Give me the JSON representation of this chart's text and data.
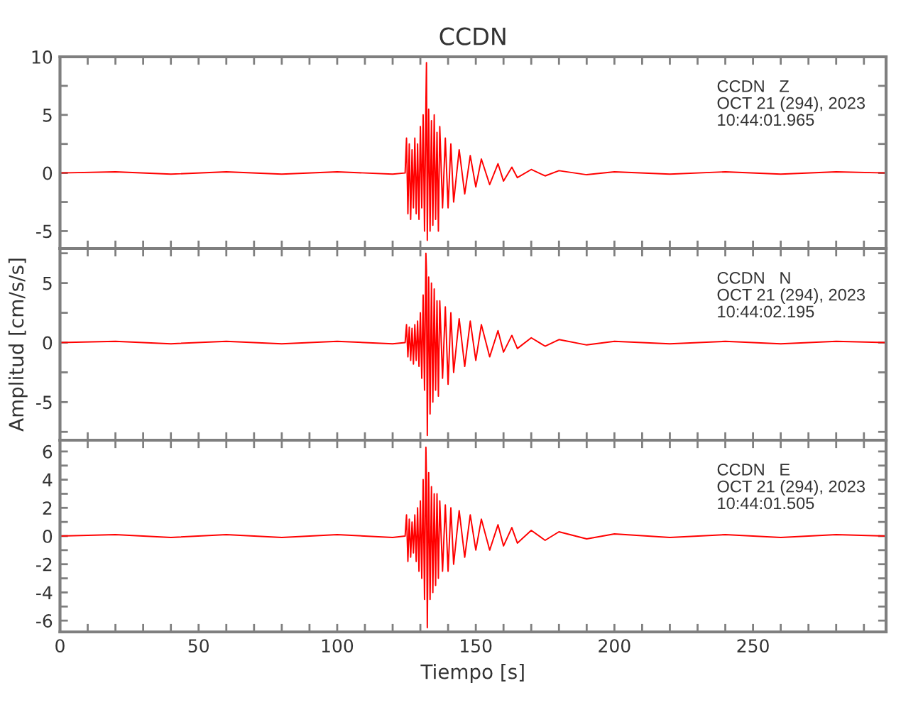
{
  "chart_data": [
    {
      "type": "line",
      "title": "CCDN",
      "annotations": [
        "CCDN   Z\nOCT 21 (294), 2023\n10:44:01.965"
      ],
      "tick_labels": "y",
      "grid": false,
      "line_style": "solid",
      "x": [
        0,
        20,
        40,
        60,
        80,
        100,
        120,
        124.5,
        125,
        125.5,
        126,
        126.5,
        127,
        127.5,
        128,
        128.5,
        129,
        129.5,
        130,
        130.5,
        131,
        131.5,
        132,
        132.2,
        132.5,
        133,
        133.5,
        134,
        134.5,
        135,
        135.5,
        136,
        136.5,
        137,
        138,
        139,
        140,
        141,
        142,
        144,
        146,
        148,
        150,
        152,
        155,
        158,
        160,
        163,
        165,
        170,
        175,
        180,
        190,
        200,
        220,
        240,
        260,
        280,
        298
      ],
      "series": [
        {
          "color": "#ff0000",
          "values": [
            0,
            0.1,
            -0.1,
            0.1,
            -0.1,
            0.1,
            -0.1,
            0,
            3,
            -3.5,
            2.5,
            -4,
            2,
            -3,
            3,
            -3.5,
            2.5,
            -4,
            4,
            -3,
            5,
            -5,
            6,
            9.5,
            -5.8,
            5.5,
            -5,
            4.5,
            -4.5,
            5,
            -4,
            3.5,
            -5,
            4,
            -3,
            3,
            -3,
            2.5,
            -2.5,
            2,
            -1.8,
            1.5,
            -1.2,
            1.2,
            -1,
            0.8,
            -0.7,
            0.5,
            -0.4,
            0.3,
            -0.25,
            0.2,
            -0.15,
            0.1,
            -0.1,
            0.1,
            -0.1,
            0.1,
            0
          ]
        }
      ],
      "xlim": [
        0,
        298
      ],
      "xticks": [
        0,
        {
          "value": 10,
          "label": null
        },
        {
          "value": 20,
          "label": null
        },
        {
          "value": 30,
          "label": null
        },
        {
          "value": 40,
          "label": null
        },
        50,
        {
          "value": 60,
          "label": null
        },
        {
          "value": 70,
          "label": null
        },
        {
          "value": 80,
          "label": null
        },
        {
          "value": 90,
          "label": null
        },
        100,
        {
          "value": 110,
          "label": null
        },
        {
          "value": 120,
          "label": null
        },
        {
          "value": 130,
          "label": null
        },
        {
          "value": 140,
          "label": null
        },
        150,
        {
          "value": 160,
          "label": null
        },
        {
          "value": 170,
          "label": null
        },
        {
          "value": 180,
          "label": null
        },
        {
          "value": 190,
          "label": null
        },
        200,
        {
          "value": 210,
          "label": null
        },
        {
          "value": 220,
          "label": null
        },
        {
          "value": 230,
          "label": null
        },
        {
          "value": 240,
          "label": null
        },
        250,
        {
          "value": 260,
          "label": null
        },
        {
          "value": 270,
          "label": null
        },
        {
          "value": 280,
          "label": null
        },
        {
          "value": 290,
          "label": null
        }
      ],
      "ylim": [
        -6.5,
        10
      ],
      "yticks": [
        -5,
        {
          "value": -2.5,
          "label": null
        },
        0,
        {
          "value": 2.5,
          "label": null
        },
        5,
        {
          "value": 7.5,
          "label": null
        },
        10
      ]
    },
    {
      "type": "line",
      "ylabel": "Amplitud [cm/s/s]",
      "annotations": [
        "CCDN   N\nOCT 21 (294), 2023\n10:44:02.195"
      ],
      "tick_labels": "y",
      "grid": false,
      "line_style": "solid",
      "x": [
        0,
        20,
        40,
        60,
        80,
        100,
        120,
        124.5,
        125,
        125.5,
        126,
        126.5,
        127,
        127.5,
        128,
        128.5,
        129,
        129.5,
        130,
        130.5,
        131,
        131.5,
        132,
        132.2,
        132.5,
        133,
        133.5,
        134,
        134.5,
        135,
        135.5,
        136,
        136.5,
        137,
        138,
        139,
        140,
        141,
        142,
        144,
        146,
        148,
        150,
        152,
        155,
        158,
        160,
        163,
        165,
        170,
        175,
        180,
        190,
        200,
        220,
        240,
        260,
        280,
        298
      ],
      "series": [
        {
          "color": "#ff0000",
          "values": [
            0,
            0.1,
            -0.1,
            0.1,
            -0.1,
            0.1,
            -0.1,
            0,
            1.5,
            -1.2,
            1.3,
            -1.5,
            1.2,
            -1.8,
            1.5,
            -1.5,
            1.8,
            -2,
            2.5,
            -3,
            4,
            -4,
            7.5,
            6,
            -7.8,
            5.5,
            -6,
            5,
            -5,
            4.5,
            -4,
            3.5,
            -4.5,
            3.5,
            -3,
            3,
            -3.5,
            2.5,
            -2.5,
            2,
            -2,
            1.8,
            -1.5,
            1.5,
            -1.2,
            1,
            -0.8,
            0.6,
            -0.5,
            0.4,
            -0.3,
            0.25,
            -0.2,
            0.1,
            -0.1,
            0.1,
            -0.1,
            0.1,
            0
          ]
        }
      ],
      "xlim": [
        0,
        298
      ],
      "xticks": [
        0,
        {
          "value": 10,
          "label": null
        },
        {
          "value": 20,
          "label": null
        },
        {
          "value": 30,
          "label": null
        },
        {
          "value": 40,
          "label": null
        },
        50,
        {
          "value": 60,
          "label": null
        },
        {
          "value": 70,
          "label": null
        },
        {
          "value": 80,
          "label": null
        },
        {
          "value": 90,
          "label": null
        },
        100,
        {
          "value": 110,
          "label": null
        },
        {
          "value": 120,
          "label": null
        },
        {
          "value": 130,
          "label": null
        },
        {
          "value": 140,
          "label": null
        },
        150,
        {
          "value": 160,
          "label": null
        },
        {
          "value": 170,
          "label": null
        },
        {
          "value": 180,
          "label": null
        },
        {
          "value": 190,
          "label": null
        },
        200,
        {
          "value": 210,
          "label": null
        },
        {
          "value": 220,
          "label": null
        },
        {
          "value": 230,
          "label": null
        },
        {
          "value": 240,
          "label": null
        },
        250,
        {
          "value": 260,
          "label": null
        },
        {
          "value": 270,
          "label": null
        },
        {
          "value": 280,
          "label": null
        },
        {
          "value": 290,
          "label": null
        }
      ],
      "ylim": [
        -8.2,
        7.9
      ],
      "yticks": [
        {
          "value": -7.5,
          "label": null
        },
        -5,
        {
          "value": -2.5,
          "label": null
        },
        0,
        {
          "value": 2.5,
          "label": null
        },
        5,
        {
          "value": 7.5,
          "label": null
        }
      ]
    },
    {
      "type": "line",
      "xlabel": "Tiempo [s]",
      "annotations": [
        "CCDN   E\nOCT 21 (294), 2023\n10:44:01.505"
      ],
      "grid": false,
      "line_style": "solid",
      "x": [
        0,
        20,
        40,
        60,
        80,
        100,
        120,
        124.5,
        125,
        125.5,
        126,
        126.5,
        127,
        127.5,
        128,
        128.5,
        129,
        129.5,
        130,
        130.5,
        131,
        131.5,
        132,
        132.2,
        132.5,
        133,
        133.5,
        134,
        134.5,
        135,
        135.5,
        136,
        136.5,
        137,
        138,
        139,
        140,
        141,
        142,
        144,
        146,
        148,
        150,
        152,
        155,
        158,
        160,
        163,
        165,
        170,
        175,
        180,
        190,
        200,
        220,
        240,
        260,
        280,
        298
      ],
      "series": [
        {
          "color": "#ff0000",
          "values": [
            0,
            0.1,
            -0.1,
            0.1,
            -0.1,
            0.1,
            -0.1,
            0,
            1.5,
            -1.8,
            1.2,
            -1.5,
            1,
            -1.2,
            1.5,
            -1.8,
            2,
            -2.5,
            2.5,
            -3,
            4,
            -4.5,
            6.3,
            4,
            -6.5,
            4.5,
            -4.5,
            3.5,
            -4,
            3,
            -3.5,
            3,
            -3,
            2.5,
            -2.5,
            2.2,
            -2.5,
            2,
            -2,
            1.8,
            -1.5,
            1.5,
            -1,
            1.2,
            -1,
            0.8,
            -0.7,
            0.6,
            -0.5,
            0.4,
            -0.3,
            0.3,
            -0.2,
            0.15,
            -0.1,
            0.1,
            -0.1,
            0.1,
            0
          ]
        }
      ],
      "xlim": [
        0,
        298
      ],
      "xticks": [
        0,
        {
          "value": 10,
          "label": null
        },
        {
          "value": 20,
          "label": null
        },
        {
          "value": 30,
          "label": null
        },
        {
          "value": 40,
          "label": null
        },
        50,
        {
          "value": 60,
          "label": null
        },
        {
          "value": 70,
          "label": null
        },
        {
          "value": 80,
          "label": null
        },
        {
          "value": 90,
          "label": null
        },
        100,
        {
          "value": 110,
          "label": null
        },
        {
          "value": 120,
          "label": null
        },
        {
          "value": 130,
          "label": null
        },
        {
          "value": 140,
          "label": null
        },
        150,
        {
          "value": 160,
          "label": null
        },
        {
          "value": 170,
          "label": null
        },
        {
          "value": 180,
          "label": null
        },
        {
          "value": 190,
          "label": null
        },
        200,
        {
          "value": 210,
          "label": null
        },
        {
          "value": 220,
          "label": null
        },
        {
          "value": 230,
          "label": null
        },
        {
          "value": 240,
          "label": null
        },
        250,
        {
          "value": 260,
          "label": null
        },
        {
          "value": 270,
          "label": null
        },
        {
          "value": 280,
          "label": null
        },
        {
          "value": 290,
          "label": null
        }
      ],
      "ylim": [
        -6.8,
        6.8
      ],
      "yticks": [
        -6,
        {
          "value": -5,
          "label": null
        },
        -4,
        {
          "value": -3,
          "label": null
        },
        -2,
        {
          "value": -1,
          "label": null
        },
        0,
        {
          "value": 1,
          "label": null
        },
        2,
        {
          "value": 3,
          "label": null
        },
        4,
        {
          "value": 5,
          "label": null
        },
        6
      ]
    }
  ]
}
